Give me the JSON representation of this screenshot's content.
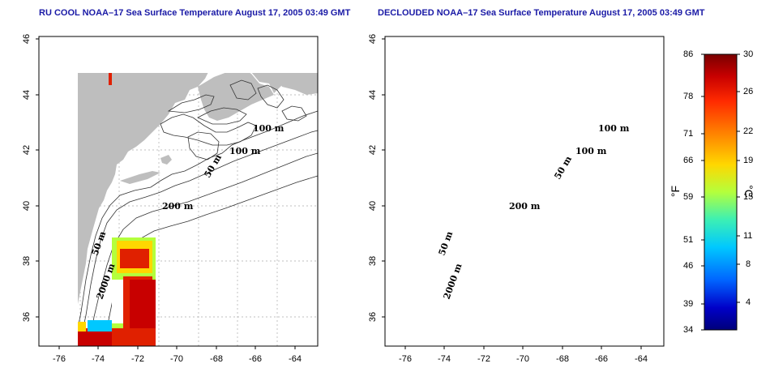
{
  "panels": [
    {
      "id": "left",
      "title": "RU COOL NOAA–17 Sea Surface Temperature August 17, 2005 03:49 GMT"
    },
    {
      "id": "right",
      "title": "DECLOUDED NOAA–17 Sea Surface Temperature August 17, 2005 03:49 GMT"
    }
  ],
  "axes": {
    "lat_ticks": [
      "46",
      "44",
      "42",
      "40",
      "38",
      "36"
    ],
    "lon_ticks": [
      "-76",
      "-74",
      "-72",
      "-70",
      "-68",
      "-66",
      "-64"
    ]
  },
  "contour_labels": [
    "100 m",
    "100 m",
    "50 m",
    "200 m",
    "50 m",
    "2000 m"
  ],
  "colorbar": {
    "fahrenheit_ticks": [
      "86",
      "78",
      "71",
      "66",
      "59",
      "51",
      "46",
      "39",
      "34"
    ],
    "celsius_ticks": [
      "30",
      "26",
      "22",
      "19",
      "15",
      "11",
      "8",
      "4"
    ],
    "fahrenheit_unit": "°F",
    "celsius_unit": "°C",
    "colors": [
      "#7a0000",
      "#c80000",
      "#ff2a00",
      "#ff8c00",
      "#ffd700",
      "#b4ff3c",
      "#3cf0b4",
      "#00c8ff",
      "#0064ff",
      "#0000c8",
      "#00007a"
    ]
  },
  "colors": {
    "land": "#bebebe",
    "water": "#ffffff",
    "title": "#1a1aa6"
  }
}
